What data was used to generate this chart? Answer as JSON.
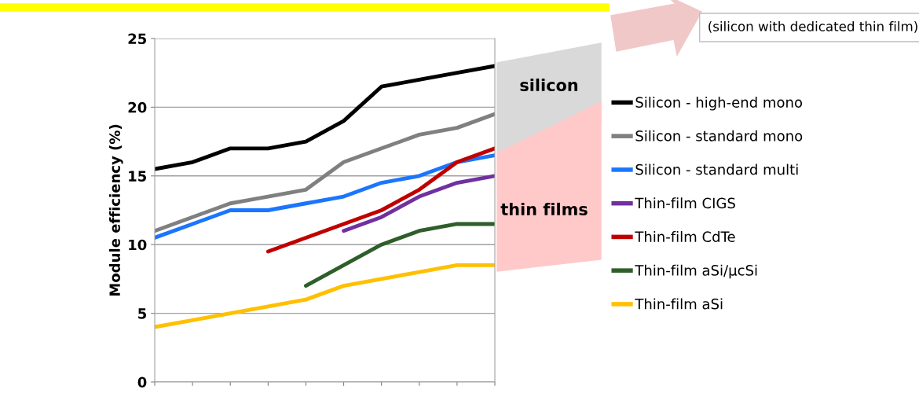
{
  "chart_data": {
    "type": "line",
    "ylabel": "Module efficiency (%)",
    "categories": [
      null,
      null,
      null,
      null,
      null,
      null,
      null,
      null,
      null,
      null
    ],
    "series": [
      {
        "name": "Silicon - high-end mono",
        "color": "#000000",
        "values": [
          15.5,
          16,
          17,
          17,
          17.5,
          19,
          21.5,
          22,
          22.5,
          23
        ]
      },
      {
        "name": "Silicon - standard mono",
        "color": "#808080",
        "values": [
          11,
          12,
          13,
          13.5,
          14,
          16,
          17,
          18,
          18.5,
          19.5
        ]
      },
      {
        "name": "Silicon - standard multi",
        "color": "#1a75ff",
        "values": [
          10.5,
          11.5,
          12.5,
          12.5,
          13,
          13.5,
          14.5,
          15,
          16,
          16.5
        ]
      },
      {
        "name": "Thin-film CIGS",
        "color": "#7030a0",
        "values": [
          null,
          null,
          null,
          null,
          null,
          11,
          12,
          13.5,
          14.5,
          15
        ]
      },
      {
        "name": "Thin-film CdTe",
        "color": "#c00000",
        "values": [
          null,
          null,
          null,
          9.5,
          10.5,
          11.5,
          12.5,
          14,
          16,
          17
        ]
      },
      {
        "name": "Thin-film aSi/μcSi",
        "color": "#2e5e2a",
        "values": [
          null,
          null,
          null,
          null,
          7,
          8.5,
          10,
          11,
          11.5,
          11.5
        ]
      },
      {
        "name": "Thin-film aSi",
        "color": "#ffc000",
        "values": [
          4,
          4.5,
          5,
          5.5,
          6,
          7,
          7.5,
          8,
          8.5,
          8.5
        ]
      }
    ],
    "ylim": [
      0,
      25
    ],
    "yticks": [
      0,
      5,
      10,
      15,
      20,
      25
    ],
    "grid": "y",
    "legend": "right",
    "marker": "none",
    "line_style": "solid",
    "annotations": [
      "silicon",
      "thin films",
      "(silicon with dedicated thin film)"
    ]
  }
}
